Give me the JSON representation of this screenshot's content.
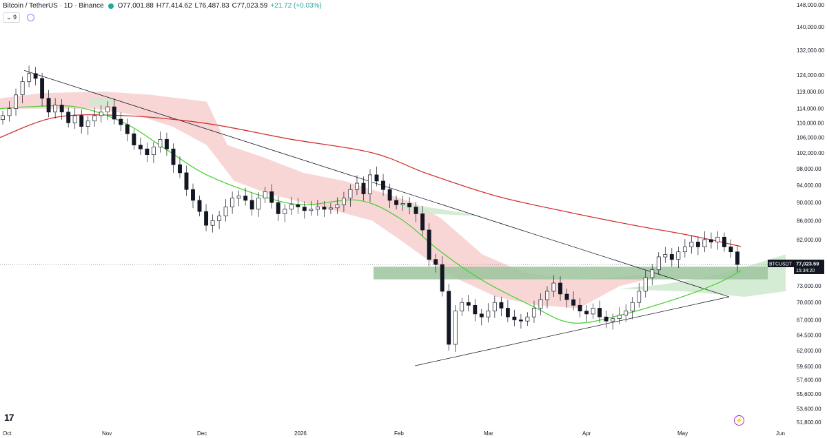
{
  "header": {
    "symbol": "Bitcoin / TetherUS · 1D · Binance",
    "open": "O77,001.88",
    "high": "H77,414.62",
    "low": "L76,487.83",
    "close": "C77,023.59",
    "change": "+21.72 (+0.03%)"
  },
  "indicator_toggle": "9",
  "price_tag": {
    "ticker": "BTCUSDT",
    "price": "77,023.59",
    "countdown": "15:34:20"
  },
  "colors": {
    "up": "#ffffff",
    "down": "#131722",
    "ma_slow": "#d32f2f",
    "ma_fast": "#4cd137",
    "cloud_red": "#f8cfcf",
    "cloud_green": "#cfe9cf",
    "zone": "#9cc49c",
    "trendline": "#131722"
  },
  "chart_data": {
    "type": "candlestick",
    "x_ticks": [
      "Oct",
      "Nov",
      "Dec",
      "2026",
      "Feb",
      "Mar",
      "Apr",
      "May",
      "Jun"
    ],
    "y_ticks": [
      "148,000.00",
      "140,000.00",
      "132,000.00",
      "124,000.00",
      "119,000.00",
      "114,000.00",
      "110,000.00",
      "106,000.00",
      "102,000.00",
      "98,000.00",
      "94,000.00",
      "90,000.00",
      "86,000.00",
      "82,000.00",
      "73,000.00",
      "70,000.00",
      "67,000.00",
      "64,500.00",
      "62,000.00",
      "59,600.00",
      "57,600.00",
      "55,600.00",
      "53,600.00",
      "51,800.00"
    ],
    "scale": "log",
    "ylim": [
      51500,
      150000
    ],
    "candle_closes": [
      112000,
      114000,
      118000,
      122000,
      124500,
      123000,
      117000,
      113000,
      115000,
      113000,
      110000,
      112000,
      109000,
      110500,
      112000,
      113000,
      114500,
      111000,
      109500,
      107000,
      104000,
      103000,
      101500,
      103500,
      105500,
      103000,
      99000,
      97000,
      93000,
      90500,
      88000,
      85000,
      86000,
      87000,
      89000,
      91000,
      91500,
      90500,
      88500,
      91000,
      92500,
      90000,
      87500,
      88500,
      89500,
      89000,
      88200,
      88500,
      89000,
      88500,
      88800,
      89500,
      91000,
      93000,
      94500,
      92000,
      96500,
      95000,
      93000,
      90500,
      89500,
      89800,
      89000,
      87500,
      84000,
      78000,
      77000,
      72000,
      63000,
      68500,
      70000,
      69500,
      68000,
      67500,
      68500,
      70000,
      69000,
      67500,
      67000,
      66800,
      67500,
      69000,
      70500,
      72000,
      73500,
      71500,
      70500,
      69500,
      68500,
      68000,
      69000,
      67500,
      66800,
      67200,
      67800,
      68500,
      70000,
      72000,
      74500,
      76000,
      78500,
      79000,
      78000,
      79500,
      80500,
      81500,
      80500,
      82000,
      81500,
      82500,
      80500,
      79500,
      77000
    ],
    "ma_fast_points": [
      [
        0,
        114000
      ],
      [
        40,
        114500
      ],
      [
        110,
        114500
      ],
      [
        180,
        110000
      ],
      [
        240,
        103000
      ],
      [
        300,
        96500
      ],
      [
        380,
        91500
      ],
      [
        440,
        89500
      ],
      [
        520,
        90500
      ],
      [
        580,
        86500
      ],
      [
        640,
        79500
      ],
      [
        700,
        74000
      ],
      [
        770,
        69500
      ],
      [
        830,
        66500
      ],
      [
        900,
        67800
      ],
      [
        980,
        70600
      ],
      [
        1040,
        73400
      ],
      [
        1075,
        75800
      ]
    ],
    "ma_slow_points": [
      [
        0,
        106000
      ],
      [
        80,
        111500
      ],
      [
        180,
        112000
      ],
      [
        300,
        109800
      ],
      [
        420,
        105600
      ],
      [
        540,
        102000
      ],
      [
        620,
        96800
      ],
      [
        720,
        91500
      ],
      [
        820,
        88000
      ],
      [
        920,
        85000
      ],
      [
        1000,
        82900
      ],
      [
        1075,
        80600
      ]
    ],
    "descending_trendline": [
      [
        35,
        125500
      ],
      [
        1058,
        71000
      ]
    ],
    "ascending_trendline": [
      [
        602,
        59700
      ],
      [
        1058,
        71000
      ]
    ],
    "support_zone": [
      74200,
      76600
    ],
    "last_price": 77023.59
  }
}
